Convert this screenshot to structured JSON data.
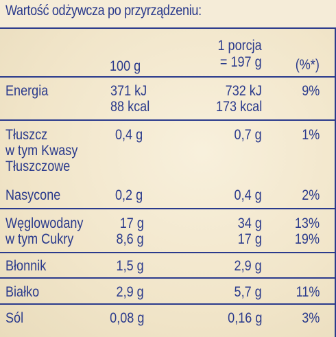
{
  "title": "Wartość odżywcza po przyrządzeniu:",
  "columns": {
    "per100": "100 g",
    "portion_line1": "1 porcja",
    "portion_line2": "= 197 g",
    "percent": "(%*)"
  },
  "rows": [
    {
      "name_lines": [
        "Energia"
      ],
      "per100": [
        "371  kJ",
        "88  kcal"
      ],
      "portion": [
        "732 kJ",
        "173 kcal"
      ],
      "percent": [
        "9%"
      ]
    },
    {
      "name_lines": [
        "Tłuszcz",
        "w tym Kwasy",
        "Tłuszczowe"
      ],
      "per100": [
        "0,4 g"
      ],
      "portion": [
        "0,7 g"
      ],
      "percent": [
        "1%"
      ]
    },
    {
      "name_lines": [
        "Nasycone"
      ],
      "per100": [
        "0,2 g"
      ],
      "portion": [
        "0,4 g"
      ],
      "percent": [
        "2%"
      ]
    },
    {
      "name_lines": [
        "Węglowodany",
        "w tym Cukry"
      ],
      "per100": [
        "17 g",
        "8,6 g"
      ],
      "portion": [
        "34 g",
        "17 g"
      ],
      "percent": [
        "13%",
        "19%"
      ]
    },
    {
      "name_lines": [
        "Błonnik"
      ],
      "per100": [
        "1,5 g"
      ],
      "portion": [
        "2,9 g"
      ],
      "percent": [
        ""
      ]
    },
    {
      "name_lines": [
        "Białko"
      ],
      "per100": [
        "2,9 g"
      ],
      "portion": [
        "5,7 g"
      ],
      "percent": [
        "11%"
      ]
    },
    {
      "name_lines": [
        "Sól"
      ],
      "per100": [
        "0,08 g"
      ],
      "portion": [
        "0,16 g"
      ],
      "percent": [
        "3%"
      ]
    }
  ],
  "colors": {
    "text": "#2a3a8c",
    "background": "#f2e8d0"
  }
}
